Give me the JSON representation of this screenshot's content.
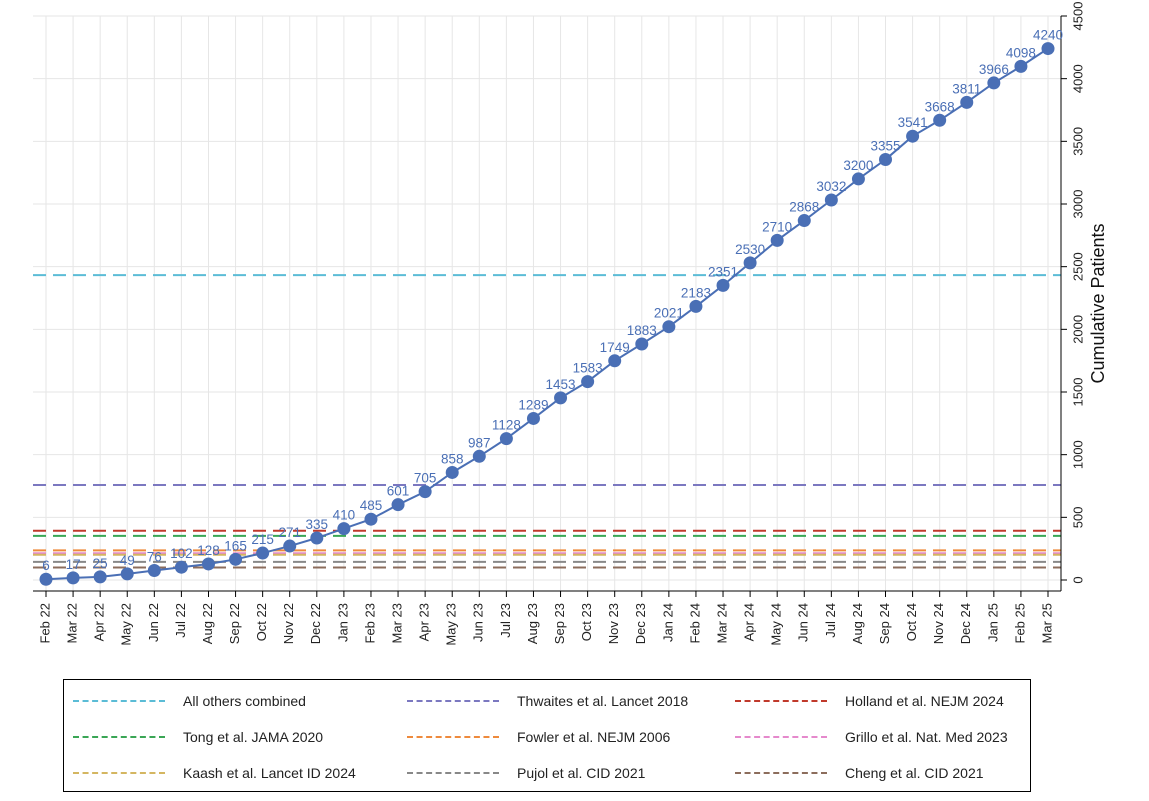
{
  "chart_data": {
    "type": "line",
    "ylabel": "Cumulative Patients",
    "xlabel": "",
    "ylim": [
      0,
      4500
    ],
    "yticks": [
      0,
      500,
      1000,
      1500,
      2000,
      2500,
      3000,
      3500,
      4000,
      4500
    ],
    "y_axis_side": "right",
    "grid": true,
    "legend_position": "bottom",
    "categories": [
      "Feb 22",
      "Mar 22",
      "Apr 22",
      "May 22",
      "Jun 22",
      "Jul 22",
      "Aug 22",
      "Sep 22",
      "Oct 22",
      "Nov 22",
      "Dec 22",
      "Jan 23",
      "Feb 23",
      "Mar 23",
      "Apr 23",
      "May 23",
      "Jun 23",
      "Jul 23",
      "Aug 23",
      "Sep 23",
      "Oct 23",
      "Nov 23",
      "Dec 23",
      "Jan 24",
      "Feb 24",
      "Mar 24",
      "Apr 24",
      "May 24",
      "Jun 24",
      "Jul 24",
      "Aug 24",
      "Sep 24",
      "Oct 24",
      "Nov 24",
      "Dec 24",
      "Jan 25",
      "Feb 25",
      "Mar 25"
    ],
    "series": [
      {
        "color": "#4a6fb5",
        "values": [
          6,
          17,
          25,
          49,
          76,
          102,
          128,
          165,
          215,
          271,
          335,
          410,
          485,
          601,
          705,
          858,
          987,
          1128,
          1289,
          1453,
          1583,
          1749,
          1883,
          2021,
          2183,
          2351,
          2530,
          2710,
          2868,
          3032,
          3200,
          3355,
          3541,
          3668,
          3811,
          3966,
          4098,
          4240
        ],
        "data_labels": [
          "6",
          "17",
          "25",
          "49",
          "76",
          "102",
          "128",
          "165",
          "215",
          "271",
          "335",
          "410",
          "485",
          "601",
          "705",
          "858",
          "987",
          "1128",
          "1289",
          "1453",
          "1583",
          "1749",
          "1883",
          "2021",
          "2183",
          "2351",
          "2530",
          "2710",
          "2868",
          "3032",
          "3200",
          "3355",
          "3541",
          "3668",
          "3811",
          "3966",
          "4098",
          "4240"
        ]
      }
    ],
    "reference_lines": [
      {
        "name": "All others combined",
        "value": 2433,
        "color": "#5bbcd6"
      },
      {
        "name": "Thwaites et al. Lancet 2018",
        "value": 758,
        "color": "#7b78c0"
      },
      {
        "name": "Holland et al. NEJM 2024",
        "value": 393,
        "color": "#c0392b"
      },
      {
        "name": "Tong et al. JAMA 2020",
        "value": 352,
        "color": "#3aa655"
      },
      {
        "name": "Fowler et al. NEJM 2006",
        "value": 236,
        "color": "#ee8a3c"
      },
      {
        "name": "Grillo et al. Nat. Med 2023",
        "value": 213,
        "color": "#e589cc"
      },
      {
        "name": "Kaash et al. Lancet ID 2024",
        "value": 201,
        "color": "#d4b661"
      },
      {
        "name": "Pujol et al. CID 2021",
        "value": 145,
        "color": "#888888"
      },
      {
        "name": "Cheng et al. CID 2021",
        "value": 100,
        "color": "#8c6d5c"
      }
    ]
  }
}
